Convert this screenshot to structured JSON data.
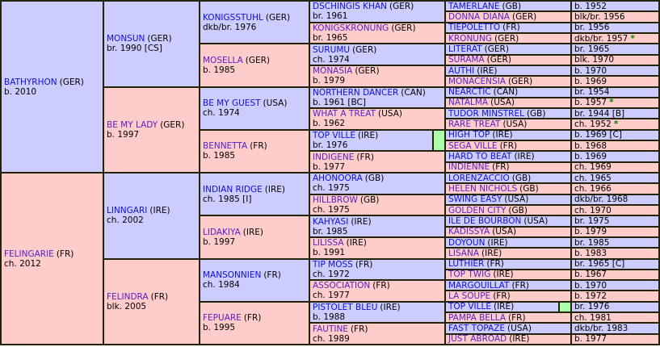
{
  "table": {
    "border_color": "#232309",
    "male_bg": "#ccccff",
    "female_bg": "#ffcccc",
    "duplicate_highlight_bg": "#aaffaa",
    "male_name_color": "#0f0fd8",
    "female_name_color": "#5522c4",
    "star_color": "#008800",
    "star_symbol": "*"
  },
  "generations": {
    "gen1": [
      {
        "name": "BATHYRHON",
        "country": "(GER)",
        "detail": "b. 2010",
        "sex": "M"
      },
      {
        "name": "FELINGARIE",
        "country": "(FR)",
        "detail": "ch. 2012",
        "sex": "F"
      }
    ],
    "gen2": [
      {
        "name": "MONSUN",
        "country": "(GER)",
        "detail": "br. 1990 [CS]",
        "sex": "M"
      },
      {
        "name": "BE MY LADY",
        "country": "(GER)",
        "detail": "b. 1997",
        "sex": "F"
      },
      {
        "name": "LINNGARI",
        "country": "(IRE)",
        "detail": "ch. 2002",
        "sex": "M"
      },
      {
        "name": "FELINDRA",
        "country": "(FR)",
        "detail": "blk. 2005",
        "sex": "F"
      }
    ],
    "gen3": [
      {
        "name": "KONIGSSTUHL",
        "country": "(GER)",
        "detail": "dkb/br. 1976",
        "sex": "M"
      },
      {
        "name": "MOSELLA",
        "country": "(GER)",
        "detail": "b. 1985",
        "sex": "F"
      },
      {
        "name": "BE MY GUEST",
        "country": "(USA)",
        "detail": "ch. 1974",
        "sex": "M"
      },
      {
        "name": "BENNETTA",
        "country": "(FR)",
        "detail": "b. 1985",
        "sex": "F"
      },
      {
        "name": "INDIAN RIDGE",
        "country": "(IRE)",
        "detail": "ch. 1985 [I]",
        "sex": "M"
      },
      {
        "name": "LIDAKIYA",
        "country": "(IRE)",
        "detail": "b. 1997",
        "sex": "F"
      },
      {
        "name": "MANSONNIEN",
        "country": "(FR)",
        "detail": "ch. 1984",
        "sex": "M"
      },
      {
        "name": "FEPUARE",
        "country": "(FR)",
        "detail": "b. 1995",
        "sex": "F"
      }
    ],
    "gen4": [
      {
        "name": "DSCHINGIS KHAN",
        "country": "(GER)",
        "detail": "br. 1961",
        "sex": "M"
      },
      {
        "name": "KONIGSKRONUNG",
        "country": "(GER)",
        "detail": "br. 1965",
        "sex": "F"
      },
      {
        "name": "SURUMU",
        "country": "(GER)",
        "detail": "ch. 1974",
        "sex": "M"
      },
      {
        "name": "MONASIA",
        "country": "(GER)",
        "detail": "b. 1979",
        "sex": "F"
      },
      {
        "name": "NORTHERN DANCER",
        "country": "(CAN)",
        "detail": "b. 1961 [BC]",
        "sex": "M"
      },
      {
        "name": "WHAT A TREAT",
        "country": "(USA)",
        "detail": "b. 1962",
        "sex": "F"
      },
      {
        "name": "TOP VILLE",
        "country": "(IRE)",
        "detail": "br. 1976",
        "sex": "M",
        "duplicate": true
      },
      {
        "name": "INDIGENE",
        "country": "(FR)",
        "detail": "b. 1977",
        "sex": "F"
      },
      {
        "name": "AHONOORA",
        "country": "(GB)",
        "detail": "ch. 1975",
        "sex": "M"
      },
      {
        "name": "HILLBROW",
        "country": "(GB)",
        "detail": "ch. 1975",
        "sex": "F"
      },
      {
        "name": "KAHYASI",
        "country": "(IRE)",
        "detail": "br. 1985",
        "sex": "M"
      },
      {
        "name": "LILISSA",
        "country": "(IRE)",
        "detail": "b. 1991",
        "sex": "F"
      },
      {
        "name": "TIP MOSS",
        "country": "(FR)",
        "detail": "ch. 1972",
        "sex": "M"
      },
      {
        "name": "ASSOCIATION",
        "country": "(FR)",
        "detail": "ch. 1977",
        "sex": "F"
      },
      {
        "name": "PISTOLET BLEU",
        "country": "(IRE)",
        "detail": "b. 1988",
        "sex": "M"
      },
      {
        "name": "FAUTINE",
        "country": "(FR)",
        "detail": "ch. 1989",
        "sex": "F"
      }
    ],
    "gen5": [
      {
        "name": "TAMERLANE",
        "country": "(GB)",
        "year": "b. 1952",
        "star": "",
        "sex": "M"
      },
      {
        "name": "DONNA DIANA",
        "country": "(GER)",
        "year": "blk/br. 1956",
        "star": "",
        "sex": "F"
      },
      {
        "name": "TIEPOLETTO",
        "country": "(FR)",
        "year": "br. 1956",
        "star": "",
        "sex": "M"
      },
      {
        "name": "KRONUNG",
        "country": "(GER)",
        "year": "dkb/br. 1957",
        "star": "*",
        "sex": "F"
      },
      {
        "name": "LITERAT",
        "country": "(GER)",
        "year": "br. 1965",
        "star": "",
        "sex": "M"
      },
      {
        "name": "SURAMA",
        "country": "(GER)",
        "year": "blk. 1970",
        "star": "",
        "sex": "F"
      },
      {
        "name": "AUTHI",
        "country": "(IRE)",
        "year": "b. 1970",
        "star": "",
        "sex": "M"
      },
      {
        "name": "MONACENSIA",
        "country": "(GER)",
        "year": "b. 1969",
        "star": "",
        "sex": "F"
      },
      {
        "name": "NEARCTIC",
        "country": "(CAN)",
        "year": "br. 1954",
        "star": "",
        "sex": "M"
      },
      {
        "name": "NATALMA",
        "country": "(USA)",
        "year": "b. 1957",
        "star": "*",
        "sex": "F"
      },
      {
        "name": "TUDOR MINSTREL",
        "country": "(GB)",
        "year": "br. 1944 [B]",
        "star": "",
        "sex": "M"
      },
      {
        "name": "RARE TREAT",
        "country": "(USA)",
        "year": "ch. 1952",
        "star": "*",
        "sex": "F"
      },
      {
        "name": "HIGH TOP",
        "country": "(IRE)",
        "year": "b. 1969 [C]",
        "star": "",
        "sex": "M"
      },
      {
        "name": "SEGA VILLE",
        "country": "(FR)",
        "year": "b. 1968",
        "star": "",
        "sex": "F"
      },
      {
        "name": "HARD TO BEAT",
        "country": "(IRE)",
        "year": "b. 1969",
        "star": "",
        "sex": "M"
      },
      {
        "name": "INDIENNE",
        "country": "(FR)",
        "year": "ch. 1969",
        "star": "",
        "sex": "F"
      },
      {
        "name": "LORENZACCIO",
        "country": "(GB)",
        "year": "ch. 1965",
        "star": "",
        "sex": "M"
      },
      {
        "name": "HELEN NICHOLS",
        "country": "(GB)",
        "year": "ch. 1966",
        "star": "",
        "sex": "F"
      },
      {
        "name": "SWING EASY",
        "country": "(USA)",
        "year": "dkb/br. 1968",
        "star": "",
        "sex": "M"
      },
      {
        "name": "GOLDEN CITY",
        "country": "(GB)",
        "year": "ch. 1970",
        "star": "",
        "sex": "F"
      },
      {
        "name": "ILE DE BOURBON",
        "country": "(USA)",
        "year": "br. 1975",
        "star": "",
        "sex": "M"
      },
      {
        "name": "KADISSYA",
        "country": "(USA)",
        "year": "b. 1979",
        "star": "",
        "sex": "F"
      },
      {
        "name": "DOYOUN",
        "country": "(IRE)",
        "year": "br. 1985",
        "star": "",
        "sex": "M"
      },
      {
        "name": "LISANA",
        "country": "(IRE)",
        "year": "b. 1983",
        "star": "",
        "sex": "F"
      },
      {
        "name": "LUTHIER",
        "country": "(FR)",
        "year": "br. 1965 [C]",
        "star": "",
        "sex": "M"
      },
      {
        "name": "TOP TWIG",
        "country": "(IRE)",
        "year": "b. 1967",
        "star": "",
        "sex": "F"
      },
      {
        "name": "MARGOUILLAT",
        "country": "(FR)",
        "year": "b. 1970",
        "star": "",
        "sex": "M"
      },
      {
        "name": "LA SOUPE",
        "country": "(FR)",
        "year": "b. 1972",
        "star": "",
        "sex": "F"
      },
      {
        "name": "TOP VILLE",
        "country": "(IRE)",
        "year": "br. 1976",
        "star": "",
        "sex": "M",
        "duplicate": true
      },
      {
        "name": "PAMPA BELLA",
        "country": "(FR)",
        "year": "ch. 1981",
        "star": "",
        "sex": "F"
      },
      {
        "name": "FAST TOPAZE",
        "country": "(USA)",
        "year": "dkb/br. 1983",
        "star": "",
        "sex": "M"
      },
      {
        "name": "JUST ABROAD",
        "country": "(IRE)",
        "year": "b. 1977",
        "star": "",
        "sex": "F"
      }
    ]
  }
}
